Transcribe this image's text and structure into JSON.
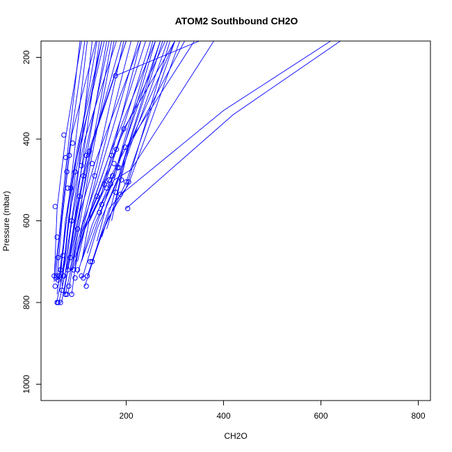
{
  "chart_data": {
    "type": "line",
    "title": "ATOM2 Southbound CH2O",
    "xlabel": "CH2O",
    "ylabel": "Pressure (mbar)",
    "xlim": [
      25,
      825
    ],
    "ylim": [
      1040,
      160
    ],
    "y_reversed": true,
    "x_ticks": [
      200,
      400,
      600,
      800
    ],
    "y_ticks": [
      200,
      400,
      600,
      800,
      1000
    ],
    "grid": false,
    "legend": "none",
    "series_color": "#0000ff",
    "series": [
      {
        "x": [
          57,
          75,
          100,
          130
        ],
        "y": [
          800,
          700,
          500,
          160
        ]
      },
      {
        "x": [
          62,
          80,
          110,
          160
        ],
        "y": [
          800,
          700,
          500,
          160
        ]
      },
      {
        "x": [
          67,
          85,
          120,
          170
        ],
        "y": [
          800,
          690,
          480,
          160
        ]
      },
      {
        "x": [
          75,
          92,
          125,
          175
        ],
        "y": [
          780,
          690,
          470,
          160
        ]
      },
      {
        "x": [
          80,
          95,
          140,
          195
        ],
        "y": [
          780,
          680,
          460,
          160
        ]
      },
      {
        "x": [
          88,
          100,
          150,
          210
        ],
        "y": [
          780,
          670,
          440,
          160
        ]
      },
      {
        "x": [
          60,
          70,
          85,
          120
        ],
        "y": [
          760,
          680,
          520,
          160
        ]
      },
      {
        "x": [
          52,
          62,
          75,
          105
        ],
        "y": [
          735,
          640,
          480,
          160
        ]
      },
      {
        "x": [
          55,
          65,
          80,
          115
        ],
        "y": [
          735,
          620,
          450,
          160
        ]
      },
      {
        "x": [
          52,
          58,
          75,
          108
        ],
        "y": [
          750,
          570,
          400,
          160
        ]
      },
      {
        "x": [
          58,
          68,
          88,
          138
        ],
        "y": [
          745,
          600,
          390,
          160
        ]
      },
      {
        "x": [
          65,
          75,
          100,
          150
        ],
        "y": [
          740,
          600,
          420,
          160
        ]
      },
      {
        "x": [
          70,
          82,
          115,
          180
        ],
        "y": [
          730,
          590,
          400,
          160
        ]
      },
      {
        "x": [
          90,
          120,
          170,
          250
        ],
        "y": [
          720,
          600,
          460,
          160
        ]
      },
      {
        "x": [
          100,
          130,
          180,
          270
        ],
        "y": [
          730,
          610,
          470,
          160
        ]
      },
      {
        "x": [
          110,
          140,
          190,
          285
        ],
        "y": [
          740,
          620,
          480,
          160
        ]
      },
      {
        "x": [
          115,
          150,
          200,
          300
        ],
        "y": [
          760,
          630,
          505,
          160
        ]
      },
      {
        "x": [
          120,
          160,
          205,
          310
        ],
        "y": [
          735,
          600,
          510,
          160
        ]
      },
      {
        "x": [
          130,
          165,
          200,
          290
        ],
        "y": [
          700,
          570,
          520,
          160
        ]
      },
      {
        "x": [
          108,
          135,
          175,
          260
        ],
        "y": [
          700,
          610,
          500,
          160
        ]
      },
      {
        "x": [
          95,
          125,
          165,
          240
        ],
        "y": [
          690,
          580,
          440,
          160
        ]
      },
      {
        "x": [
          105,
          140,
          180,
          280
        ],
        "y": [
          640,
          540,
          420,
          160
        ]
      },
      {
        "x": [
          115,
          150,
          195,
          300
        ],
        "y": [
          620,
          530,
          375,
          160
        ]
      },
      {
        "x": [
          125,
          160,
          200,
          340
        ],
        "y": [
          600,
          510,
          420,
          160
        ]
      },
      {
        "x": [
          140,
          175,
          210,
          380
        ],
        "y": [
          580,
          500,
          475,
          160
        ]
      },
      {
        "x": [
          200,
          420,
          640
        ],
        "y": [
          570,
          340,
          160
        ]
      },
      {
        "x": [
          190,
          400,
          620
        ],
        "y": [
          535,
          330,
          160
        ]
      },
      {
        "x": [
          178,
          350
        ],
        "y": [
          245,
          160
        ]
      },
      {
        "x": [
          150,
          170,
          190,
          270
        ],
        "y": [
          640,
          560,
          470,
          160
        ]
      },
      {
        "x": [
          160,
          180,
          200,
          300
        ],
        "y": [
          620,
          540,
          430,
          160
        ]
      },
      {
        "x": [
          170,
          185,
          205,
          320
        ],
        "y": [
          600,
          520,
          420,
          160
        ]
      },
      {
        "x": [
          78,
          95,
          120,
          200
        ],
        "y": [
          720,
          590,
          440,
          160
        ]
      },
      {
        "x": [
          85,
          100,
          135,
          230
        ],
        "y": [
          720,
          600,
          460,
          160
        ]
      },
      {
        "x": [
          110,
          130,
          165,
          260
        ],
        "y": [
          690,
          560,
          440,
          160
        ]
      },
      {
        "x": [
          72,
          84,
          100,
          145
        ],
        "y": [
          780,
          690,
          540,
          160
        ]
      },
      {
        "x": [
          63,
          73,
          95,
          150
        ],
        "y": [
          770,
          690,
          490,
          160
        ]
      },
      {
        "x": [
          95,
          110,
          140,
          225
        ],
        "y": [
          720,
          610,
          505,
          160
        ]
      },
      {
        "x": [
          100,
          115,
          148,
          230
        ],
        "y": [
          700,
          620,
          540,
          160
        ]
      },
      {
        "x": [
          140,
          160,
          185,
          275
        ],
        "y": [
          650,
          560,
          490,
          160
        ]
      },
      {
        "x": [
          120,
          145,
          180,
          255
        ],
        "y": [
          680,
          590,
          470,
          160
        ]
      },
      {
        "x": [
          90,
          110,
          125,
          200
        ],
        "y": [
          700,
          540,
          430,
          160
        ]
      },
      {
        "x": [
          80,
          92,
          115,
          190
        ],
        "y": [
          720,
          630,
          480,
          160
        ]
      },
      {
        "x": [
          58,
          66,
          82,
          140
        ],
        "y": [
          780,
          700,
          560,
          160
        ]
      },
      {
        "x": [
          68,
          78,
          92,
          155
        ],
        "y": [
          760,
          650,
          480,
          160
        ]
      },
      {
        "x": [
          74,
          86,
          102,
          165
        ],
        "y": [
          740,
          620,
          510,
          160
        ]
      }
    ],
    "points": [
      {
        "x": 52,
        "y": 735
      },
      {
        "x": 54,
        "y": 760
      },
      {
        "x": 56,
        "y": 740
      },
      {
        "x": 58,
        "y": 800
      },
      {
        "x": 60,
        "y": 800
      },
      {
        "x": 65,
        "y": 800
      },
      {
        "x": 57,
        "y": 735
      },
      {
        "x": 60,
        "y": 745
      },
      {
        "x": 62,
        "y": 735
      },
      {
        "x": 65,
        "y": 720
      },
      {
        "x": 68,
        "y": 770
      },
      {
        "x": 70,
        "y": 685
      },
      {
        "x": 72,
        "y": 735
      },
      {
        "x": 75,
        "y": 780
      },
      {
        "x": 78,
        "y": 780
      },
      {
        "x": 80,
        "y": 720
      },
      {
        "x": 82,
        "y": 760
      },
      {
        "x": 85,
        "y": 690
      },
      {
        "x": 88,
        "y": 780
      },
      {
        "x": 92,
        "y": 720
      },
      {
        "x": 95,
        "y": 740
      },
      {
        "x": 100,
        "y": 720
      },
      {
        "x": 108,
        "y": 735
      },
      {
        "x": 112,
        "y": 740
      },
      {
        "x": 118,
        "y": 760
      },
      {
        "x": 120,
        "y": 735
      },
      {
        "x": 126,
        "y": 700
      },
      {
        "x": 130,
        "y": 700
      },
      {
        "x": 54,
        "y": 565
      },
      {
        "x": 58,
        "y": 640
      },
      {
        "x": 60,
        "y": 690
      },
      {
        "x": 72,
        "y": 390
      },
      {
        "x": 76,
        "y": 445
      },
      {
        "x": 78,
        "y": 480
      },
      {
        "x": 80,
        "y": 520
      },
      {
        "x": 83,
        "y": 440
      },
      {
        "x": 86,
        "y": 520
      },
      {
        "x": 88,
        "y": 600
      },
      {
        "x": 90,
        "y": 410
      },
      {
        "x": 95,
        "y": 480
      },
      {
        "x": 100,
        "y": 620
      },
      {
        "x": 104,
        "y": 540
      },
      {
        "x": 108,
        "y": 465
      },
      {
        "x": 112,
        "y": 490
      },
      {
        "x": 118,
        "y": 440
      },
      {
        "x": 124,
        "y": 430
      },
      {
        "x": 130,
        "y": 460
      },
      {
        "x": 135,
        "y": 490
      },
      {
        "x": 140,
        "y": 540
      },
      {
        "x": 150,
        "y": 560
      },
      {
        "x": 155,
        "y": 510
      },
      {
        "x": 160,
        "y": 520
      },
      {
        "x": 165,
        "y": 500
      },
      {
        "x": 170,
        "y": 440
      },
      {
        "x": 172,
        "y": 490
      },
      {
        "x": 175,
        "y": 460
      },
      {
        "x": 178,
        "y": 245
      },
      {
        "x": 180,
        "y": 425
      },
      {
        "x": 182,
        "y": 470
      },
      {
        "x": 185,
        "y": 470
      },
      {
        "x": 188,
        "y": 535
      },
      {
        "x": 190,
        "y": 500
      },
      {
        "x": 195,
        "y": 375
      },
      {
        "x": 198,
        "y": 420
      },
      {
        "x": 200,
        "y": 505
      },
      {
        "x": 203,
        "y": 570
      },
      {
        "x": 205,
        "y": 505
      },
      {
        "x": 178,
        "y": 530
      },
      {
        "x": 168,
        "y": 510
      },
      {
        "x": 145,
        "y": 580
      }
    ]
  }
}
